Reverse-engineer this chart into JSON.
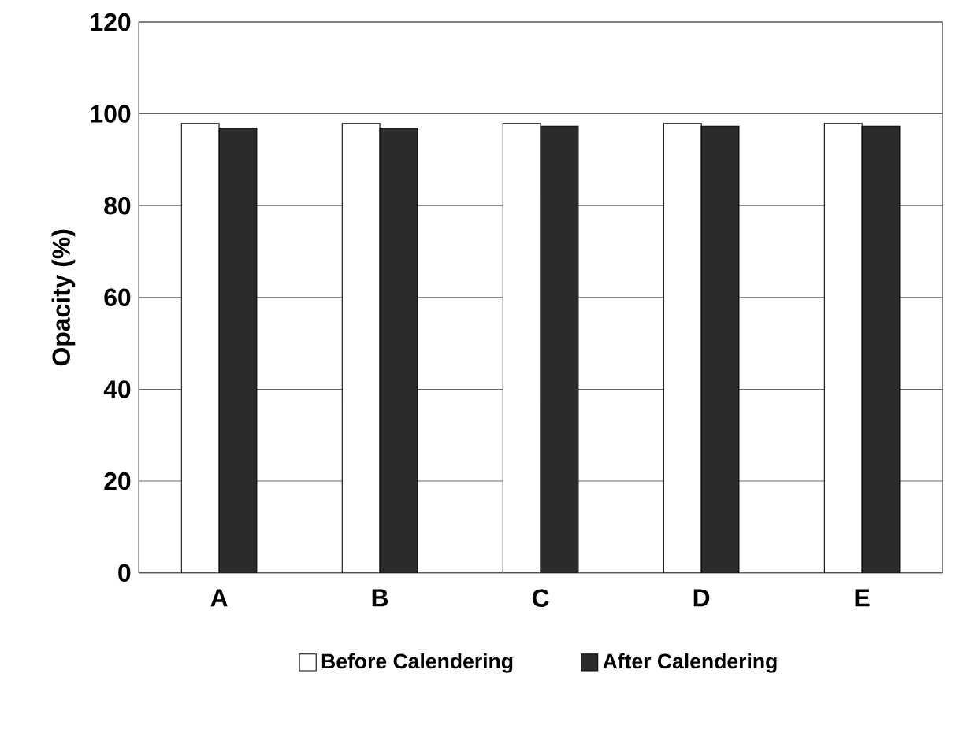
{
  "chart_data": {
    "type": "bar",
    "ylabel": "Opacity (%)",
    "categories": [
      "A",
      "B",
      "C",
      "D",
      "E"
    ],
    "series": [
      {
        "name": "Before Calendering",
        "color": "#ffffff",
        "values": [
          97.9,
          97.9,
          97.9,
          97.9,
          97.9
        ]
      },
      {
        "name": "After Calendering",
        "color": "#2b2b2e",
        "values": [
          96.9,
          96.9,
          97.3,
          97.3,
          97.3
        ]
      }
    ],
    "ylim": [
      0,
      120
    ],
    "yticks": [
      0,
      20,
      40,
      60,
      80,
      100,
      120
    ],
    "grid": "y",
    "legend": "bottom"
  }
}
